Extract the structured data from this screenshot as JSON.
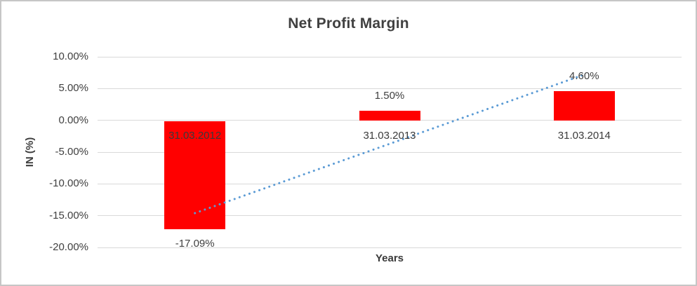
{
  "chart_data": {
    "type": "bar",
    "title": "Net Profit Margin",
    "xlabel": "Years",
    "ylabel": "IN (%)",
    "categories": [
      "31.03.2012",
      "31.03.2013",
      "31.03.2014"
    ],
    "values": [
      -17.09,
      1.5,
      4.6
    ],
    "data_labels": [
      "-17.09%",
      "1.50%",
      "4.60%"
    ],
    "yticks": [
      10,
      5,
      0,
      -5,
      -10,
      -15,
      -20
    ],
    "ytick_labels": [
      "10.00%",
      "5.00%",
      "0.00%",
      "-5.00%",
      "-10.00%",
      "-15.00%",
      "-20.00%"
    ],
    "ylim": [
      -20,
      10
    ],
    "grid": true,
    "legend": false,
    "bar_color": "#ff0000",
    "gridline_color": "#d9d9d9",
    "text_color": "#404040",
    "trendline": {
      "kind": "linear",
      "style": "dotted",
      "color": "#5b9bd5",
      "start_value": -14.6,
      "end_value": 7.2
    }
  }
}
